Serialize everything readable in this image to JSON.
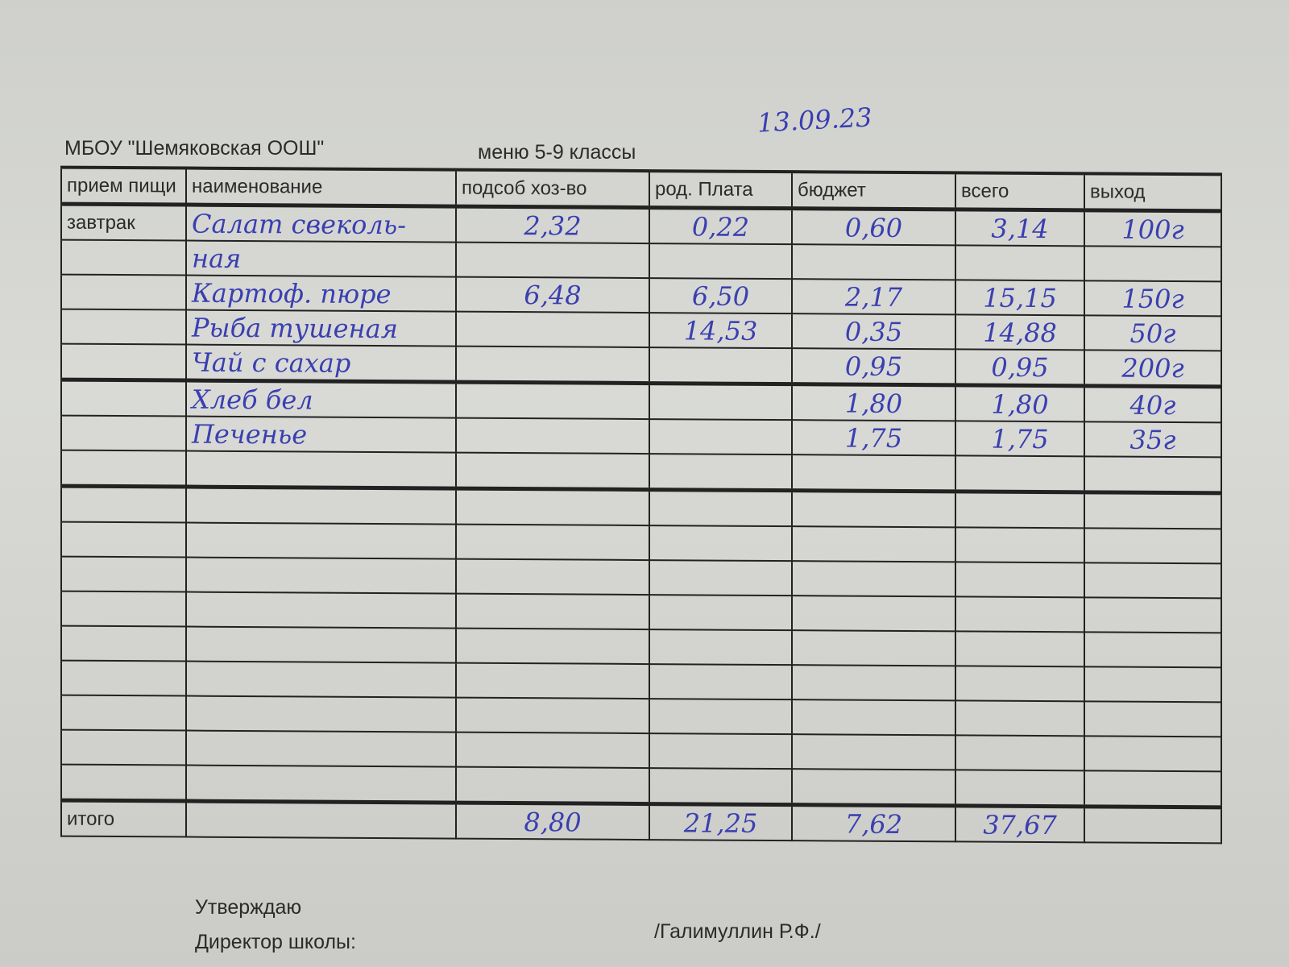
{
  "header": {
    "school": "МБОУ \"Шемяковская ООШ\"",
    "menu": "меню 5-9 классы",
    "date": "13.09.23"
  },
  "columns": [
    "прием пищи",
    "наименование",
    "подсоб хоз-во",
    "род. Плата",
    "бюджет",
    "всего",
    "выход"
  ],
  "rows": [
    [
      "завтрак",
      "Салат свеколь-",
      "2,32",
      "0,22",
      "0,60",
      "3,14",
      "100г"
    ],
    [
      "",
      "ная",
      "",
      "",
      "",
      "",
      ""
    ],
    [
      "",
      "Картоф. пюре",
      "6,48",
      "6,50",
      "2,17",
      "15,15",
      "150г"
    ],
    [
      "",
      "Рыба тушеная",
      "",
      "14,53",
      "0,35",
      "14,88",
      "50г"
    ],
    [
      "",
      "Чай с сахар",
      "",
      "",
      "0,95",
      "0,95",
      "200г"
    ],
    [
      "",
      "Хлеб бел",
      "",
      "",
      "1,80",
      "1,80",
      "40г"
    ],
    [
      "",
      "Печенье",
      "",
      "",
      "1,75",
      "1,75",
      "35г"
    ],
    [
      "",
      "",
      "",
      "",
      "",
      "",
      ""
    ],
    [
      "",
      "",
      "",
      "",
      "",
      "",
      ""
    ],
    [
      "",
      "",
      "",
      "",
      "",
      "",
      ""
    ],
    [
      "",
      "",
      "",
      "",
      "",
      "",
      ""
    ],
    [
      "",
      "",
      "",
      "",
      "",
      "",
      ""
    ],
    [
      "",
      "",
      "",
      "",
      "",
      "",
      ""
    ],
    [
      "",
      "",
      "",
      "",
      "",
      "",
      ""
    ],
    [
      "",
      "",
      "",
      "",
      "",
      "",
      ""
    ],
    [
      "",
      "",
      "",
      "",
      "",
      "",
      ""
    ],
    [
      "",
      "",
      "",
      "",
      "",
      "",
      ""
    ]
  ],
  "total": [
    "итого",
    "",
    "8,80",
    "21,25",
    "7,62",
    "37,67",
    ""
  ],
  "footer": {
    "approve": "Утверждаю",
    "director": "Директор школы:",
    "name": "/Галимуллин Р.Ф./"
  }
}
